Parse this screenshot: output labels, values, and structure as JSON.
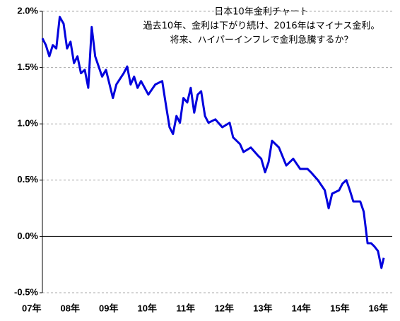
{
  "chart_data": {
    "type": "line",
    "title": [
      "日本10年金利チャート",
      "過去10年、金利は下がり続け、2016年はマイナス金利。",
      "将来、ハイパーインフレで金利急騰するか？"
    ],
    "x": [
      2007.28,
      2007.37,
      2007.46,
      2007.55,
      2007.64,
      2007.73,
      2007.83,
      2007.92,
      2008.01,
      2008.1,
      2008.19,
      2008.28,
      2008.38,
      2008.47,
      2008.56,
      2008.65,
      2008.74,
      2008.83,
      2008.93,
      2009.11,
      2009.2,
      2009.39,
      2009.48,
      2009.57,
      2009.66,
      2009.75,
      2009.84,
      2010.03,
      2010.21,
      2010.39,
      2010.49,
      2010.58,
      2010.67,
      2010.76,
      2010.85,
      2010.94,
      2011.04,
      2011.13,
      2011.22,
      2011.31,
      2011.4,
      2011.5,
      2011.59,
      2011.77,
      2011.95,
      2012.14,
      2012.23,
      2012.41,
      2012.5,
      2012.69,
      2012.87,
      2012.96,
      2013.06,
      2013.15,
      2013.24,
      2013.42,
      2013.61,
      2013.79,
      2013.97,
      2014.16,
      2014.25,
      2014.43,
      2014.61,
      2014.71,
      2014.8,
      2014.98,
      2015.07,
      2015.17,
      2015.26,
      2015.35,
      2015.44,
      2015.53,
      2015.62,
      2015.72,
      2015.81,
      2015.9,
      2015.99,
      2016.08,
      2016.14
    ],
    "series": [
      {
        "color": "#0000dd",
        "values": [
          1.76,
          1.7,
          1.6,
          1.7,
          1.67,
          1.95,
          1.89,
          1.67,
          1.73,
          1.54,
          1.6,
          1.45,
          1.48,
          1.32,
          1.86,
          1.6,
          1.51,
          1.42,
          1.48,
          1.23,
          1.35,
          1.45,
          1.51,
          1.35,
          1.42,
          1.32,
          1.38,
          1.26,
          1.35,
          1.38,
          1.16,
          0.97,
          0.91,
          1.07,
          1.01,
          1.23,
          1.19,
          1.32,
          1.1,
          1.26,
          1.29,
          1.07,
          1.01,
          1.04,
          0.97,
          1.01,
          0.88,
          0.82,
          0.75,
          0.79,
          0.72,
          0.69,
          0.57,
          0.66,
          0.85,
          0.79,
          0.63,
          0.69,
          0.6,
          0.6,
          0.57,
          0.5,
          0.41,
          0.25,
          0.38,
          0.41,
          0.47,
          0.5,
          0.41,
          0.31,
          0.31,
          0.31,
          0.22,
          -0.06,
          -0.06,
          -0.09,
          -0.13,
          -0.28,
          -0.19
        ]
      }
    ],
    "xlim": [
      2007.28,
      2016.36
    ],
    "xticks": [
      {
        "value": 2007,
        "label": "07年"
      },
      {
        "value": 2008,
        "label": "08年"
      },
      {
        "value": 2009,
        "label": "09年"
      },
      {
        "value": 2010,
        "label": "10年"
      },
      {
        "value": 2011,
        "label": "11年"
      },
      {
        "value": 2012,
        "label": "12年"
      },
      {
        "value": 2013,
        "label": "13年"
      },
      {
        "value": 2014,
        "label": "14年"
      },
      {
        "value": 2015,
        "label": "15年"
      },
      {
        "value": 2016,
        "label": "16年"
      }
    ],
    "ylim": [
      -0.5,
      2.0
    ],
    "yticks": [
      {
        "value": -0.5,
        "label": "-0.5%"
      },
      {
        "value": 0,
        "label": "0.0%"
      },
      {
        "value": 0.5,
        "label": "0.5%"
      },
      {
        "value": 1,
        "label": "1.0%"
      },
      {
        "value": 1.5,
        "label": "1.5%"
      },
      {
        "value": 2,
        "label": "2.0%"
      }
    ],
    "grid": true
  }
}
